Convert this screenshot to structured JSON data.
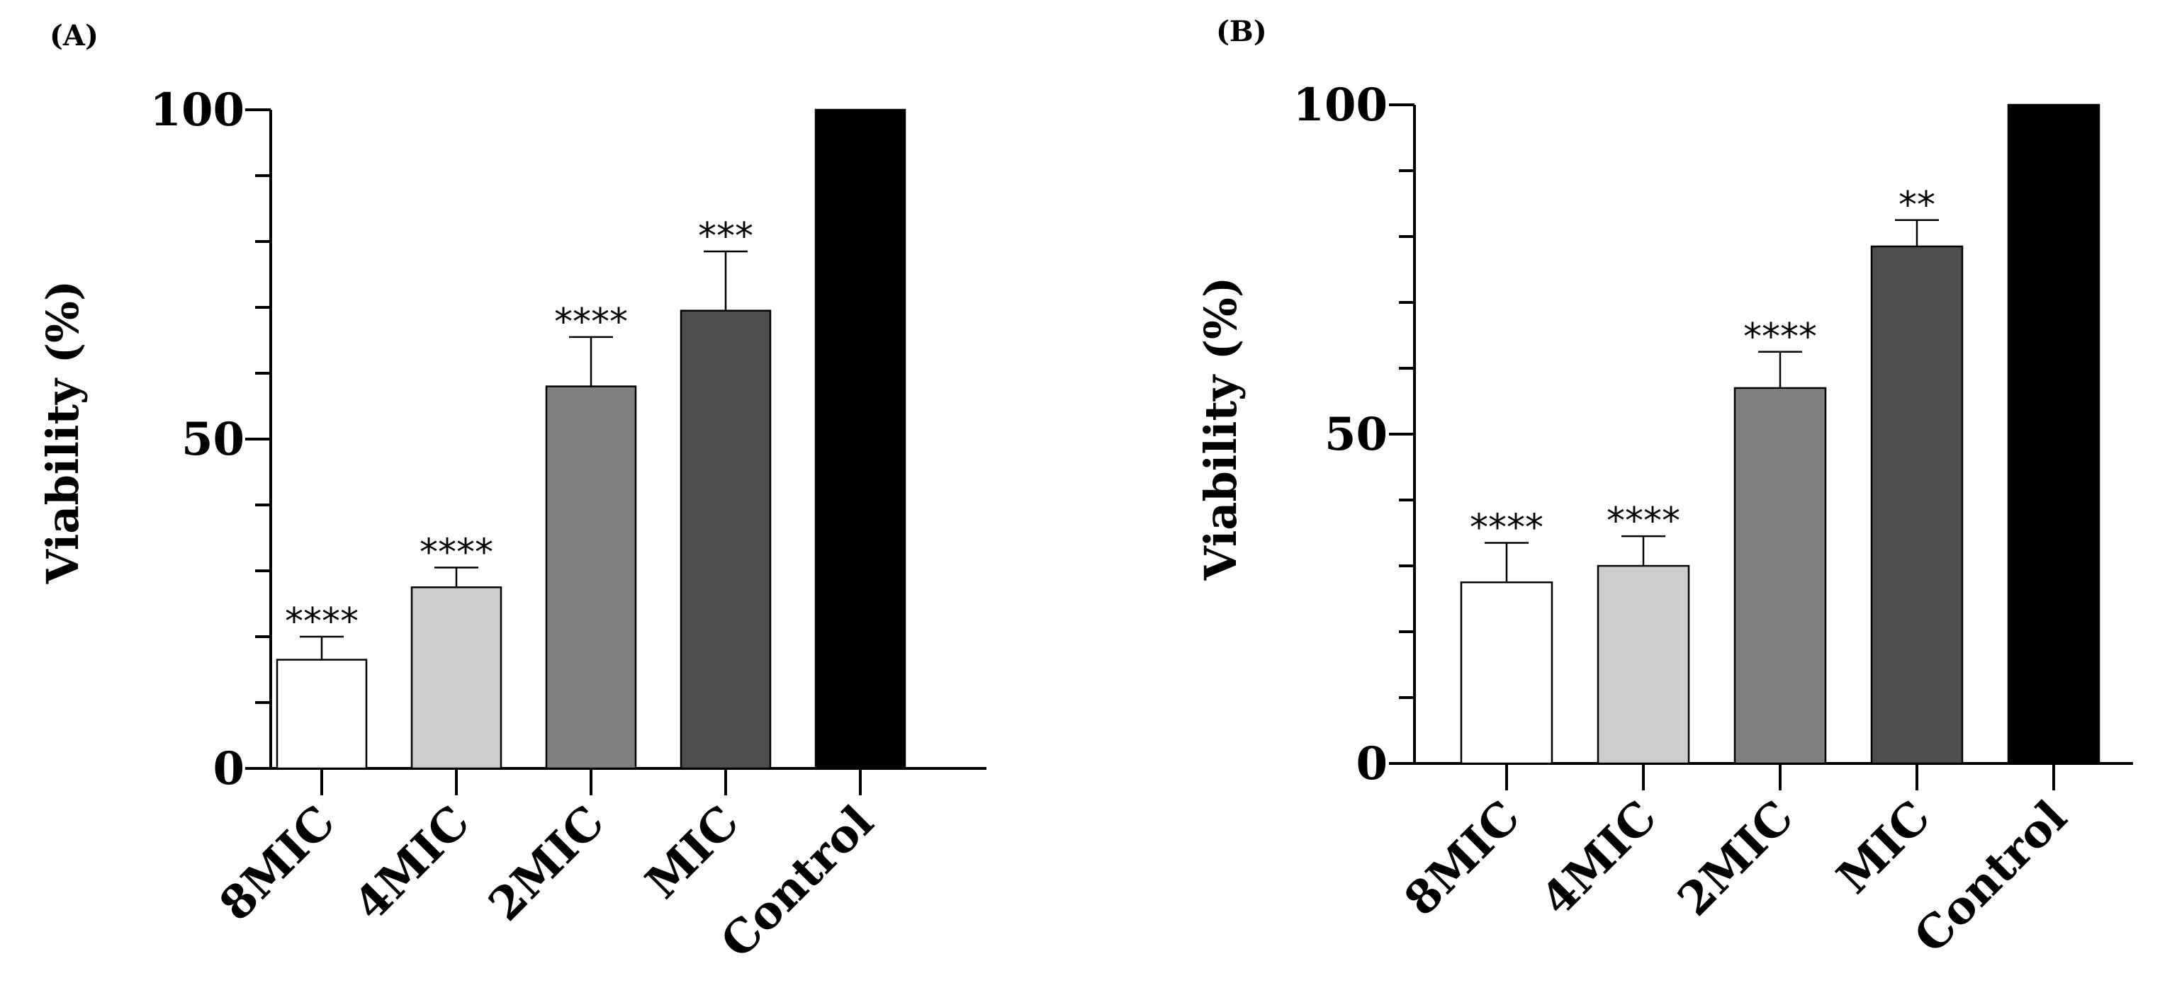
{
  "figure": {
    "panels": [
      {
        "label": "(A)"
      },
      {
        "label": "(B)"
      }
    ]
  },
  "chart_data": [
    {
      "type": "bar",
      "panel": "(A)",
      "title": "",
      "xlabel": "",
      "ylabel": "Viability (%)",
      "ylim": [
        0,
        100
      ],
      "yticks": [
        0,
        50,
        100
      ],
      "categories": [
        "8MIC",
        "4MIC",
        "2MIC",
        "MIC",
        "Control"
      ],
      "values": [
        16.5,
        27.5,
        58,
        69.5,
        100
      ],
      "errors": [
        3.5,
        3,
        7.5,
        9,
        0
      ],
      "significance": [
        "****",
        "****",
        "****",
        "***",
        ""
      ],
      "colors": [
        "#ffffff",
        "#cccccc",
        "#808080",
        "#4d4d4d",
        "#000000"
      ]
    },
    {
      "type": "bar",
      "panel": "(B)",
      "title": "",
      "xlabel": "",
      "ylabel": "Viability (%)",
      "ylim": [
        0,
        100
      ],
      "yticks": [
        0,
        50,
        100
      ],
      "categories": [
        "8MIC",
        "4MIC",
        "2MIC",
        "MIC",
        "Control"
      ],
      "values": [
        27.5,
        30,
        57,
        78.5,
        100
      ],
      "errors": [
        6,
        4.5,
        5.5,
        4,
        0
      ],
      "significance": [
        "****",
        "****",
        "****",
        "**",
        ""
      ],
      "colors": [
        "#ffffff",
        "#cccccc",
        "#808080",
        "#4d4d4d",
        "#000000"
      ]
    }
  ]
}
